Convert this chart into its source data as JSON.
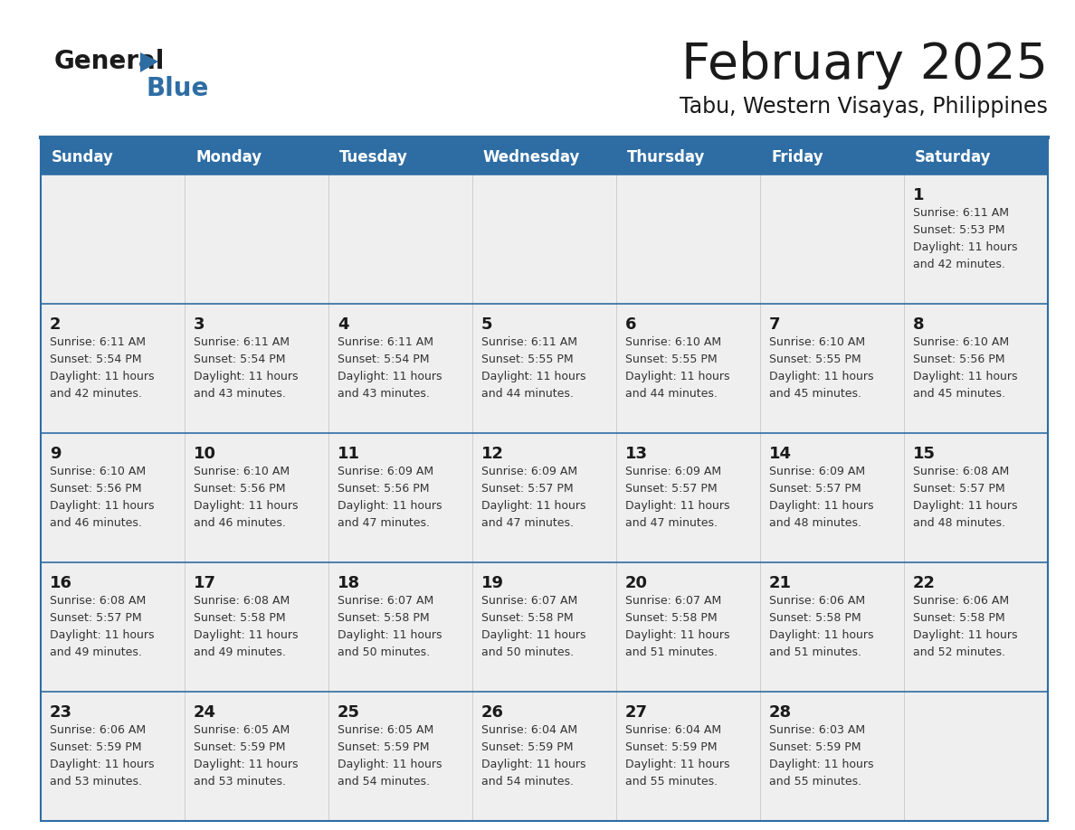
{
  "title": "February 2025",
  "subtitle": "Tabu, Western Visayas, Philippines",
  "header_bg": "#2e6da4",
  "header_text_color": "#ffffff",
  "header_days": [
    "Sunday",
    "Monday",
    "Tuesday",
    "Wednesday",
    "Thursday",
    "Friday",
    "Saturday"
  ],
  "cell_bg": "#efefef",
  "border_color": "#2e6da4",
  "day_number_color": "#1a1a1a",
  "info_text_color": "#333333",
  "calendar_data": [
    [
      null,
      null,
      null,
      null,
      null,
      null,
      {
        "day": "1",
        "sunrise": "6:11 AM",
        "sunset": "5:53 PM",
        "daylight1": "11 hours",
        "daylight2": "and 42 minutes."
      }
    ],
    [
      {
        "day": "2",
        "sunrise": "6:11 AM",
        "sunset": "5:54 PM",
        "daylight1": "11 hours",
        "daylight2": "and 42 minutes."
      },
      {
        "day": "3",
        "sunrise": "6:11 AM",
        "sunset": "5:54 PM",
        "daylight1": "11 hours",
        "daylight2": "and 43 minutes."
      },
      {
        "day": "4",
        "sunrise": "6:11 AM",
        "sunset": "5:54 PM",
        "daylight1": "11 hours",
        "daylight2": "and 43 minutes."
      },
      {
        "day": "5",
        "sunrise": "6:11 AM",
        "sunset": "5:55 PM",
        "daylight1": "11 hours",
        "daylight2": "and 44 minutes."
      },
      {
        "day": "6",
        "sunrise": "6:10 AM",
        "sunset": "5:55 PM",
        "daylight1": "11 hours",
        "daylight2": "and 44 minutes."
      },
      {
        "day": "7",
        "sunrise": "6:10 AM",
        "sunset": "5:55 PM",
        "daylight1": "11 hours",
        "daylight2": "and 45 minutes."
      },
      {
        "day": "8",
        "sunrise": "6:10 AM",
        "sunset": "5:56 PM",
        "daylight1": "11 hours",
        "daylight2": "and 45 minutes."
      }
    ],
    [
      {
        "day": "9",
        "sunrise": "6:10 AM",
        "sunset": "5:56 PM",
        "daylight1": "11 hours",
        "daylight2": "and 46 minutes."
      },
      {
        "day": "10",
        "sunrise": "6:10 AM",
        "sunset": "5:56 PM",
        "daylight1": "11 hours",
        "daylight2": "and 46 minutes."
      },
      {
        "day": "11",
        "sunrise": "6:09 AM",
        "sunset": "5:56 PM",
        "daylight1": "11 hours",
        "daylight2": "and 47 minutes."
      },
      {
        "day": "12",
        "sunrise": "6:09 AM",
        "sunset": "5:57 PM",
        "daylight1": "11 hours",
        "daylight2": "and 47 minutes."
      },
      {
        "day": "13",
        "sunrise": "6:09 AM",
        "sunset": "5:57 PM",
        "daylight1": "11 hours",
        "daylight2": "and 47 minutes."
      },
      {
        "day": "14",
        "sunrise": "6:09 AM",
        "sunset": "5:57 PM",
        "daylight1": "11 hours",
        "daylight2": "and 48 minutes."
      },
      {
        "day": "15",
        "sunrise": "6:08 AM",
        "sunset": "5:57 PM",
        "daylight1": "11 hours",
        "daylight2": "and 48 minutes."
      }
    ],
    [
      {
        "day": "16",
        "sunrise": "6:08 AM",
        "sunset": "5:57 PM",
        "daylight1": "11 hours",
        "daylight2": "and 49 minutes."
      },
      {
        "day": "17",
        "sunrise": "6:08 AM",
        "sunset": "5:58 PM",
        "daylight1": "11 hours",
        "daylight2": "and 49 minutes."
      },
      {
        "day": "18",
        "sunrise": "6:07 AM",
        "sunset": "5:58 PM",
        "daylight1": "11 hours",
        "daylight2": "and 50 minutes."
      },
      {
        "day": "19",
        "sunrise": "6:07 AM",
        "sunset": "5:58 PM",
        "daylight1": "11 hours",
        "daylight2": "and 50 minutes."
      },
      {
        "day": "20",
        "sunrise": "6:07 AM",
        "sunset": "5:58 PM",
        "daylight1": "11 hours",
        "daylight2": "and 51 minutes."
      },
      {
        "day": "21",
        "sunrise": "6:06 AM",
        "sunset": "5:58 PM",
        "daylight1": "11 hours",
        "daylight2": "and 51 minutes."
      },
      {
        "day": "22",
        "sunrise": "6:06 AM",
        "sunset": "5:58 PM",
        "daylight1": "11 hours",
        "daylight2": "and 52 minutes."
      }
    ],
    [
      {
        "day": "23",
        "sunrise": "6:06 AM",
        "sunset": "5:59 PM",
        "daylight1": "11 hours",
        "daylight2": "and 53 minutes."
      },
      {
        "day": "24",
        "sunrise": "6:05 AM",
        "sunset": "5:59 PM",
        "daylight1": "11 hours",
        "daylight2": "and 53 minutes."
      },
      {
        "day": "25",
        "sunrise": "6:05 AM",
        "sunset": "5:59 PM",
        "daylight1": "11 hours",
        "daylight2": "and 54 minutes."
      },
      {
        "day": "26",
        "sunrise": "6:04 AM",
        "sunset": "5:59 PM",
        "daylight1": "11 hours",
        "daylight2": "and 54 minutes."
      },
      {
        "day": "27",
        "sunrise": "6:04 AM",
        "sunset": "5:59 PM",
        "daylight1": "11 hours",
        "daylight2": "and 55 minutes."
      },
      {
        "day": "28",
        "sunrise": "6:03 AM",
        "sunset": "5:59 PM",
        "daylight1": "11 hours",
        "daylight2": "and 55 minutes."
      },
      null
    ]
  ]
}
